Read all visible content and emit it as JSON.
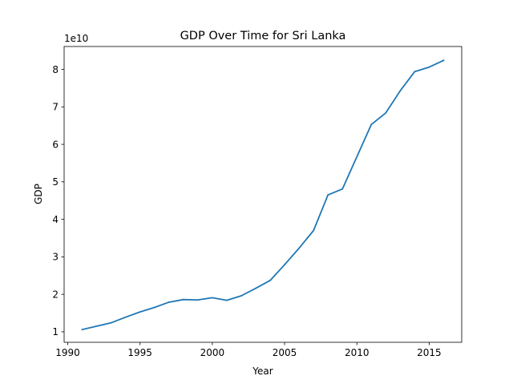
{
  "chart_data": {
    "type": "line",
    "title": "GDP Over Time for Sri Lanka",
    "xlabel": "Year",
    "ylabel": "GDP",
    "y_offset_label": "1e10",
    "xlim": [
      1989.75,
      2017.25
    ],
    "ylim": [
      0.72,
      8.61
    ],
    "x_ticks": [
      1990,
      1995,
      2000,
      2005,
      2010,
      2015
    ],
    "y_ticks": [
      1,
      2,
      3,
      4,
      5,
      6,
      7,
      8
    ],
    "grid": false,
    "line_color": "#1f77b4",
    "series": [
      {
        "x": [
          1991,
          1992,
          1993,
          1994,
          1995,
          1996,
          1997,
          1998,
          1999,
          2000,
          2001,
          2002,
          2003,
          2004,
          2005,
          2006,
          2007,
          2008,
          2009,
          2010,
          2011,
          2012,
          2013,
          2014,
          2015,
          2016
        ],
        "values": [
          1.06,
          1.15,
          1.24,
          1.39,
          1.53,
          1.65,
          1.79,
          1.86,
          1.85,
          1.91,
          1.84,
          1.96,
          2.16,
          2.37,
          2.79,
          3.23,
          3.7,
          4.65,
          4.81,
          5.67,
          6.53,
          6.84,
          7.43,
          7.94,
          8.06,
          8.24
        ]
      }
    ]
  }
}
